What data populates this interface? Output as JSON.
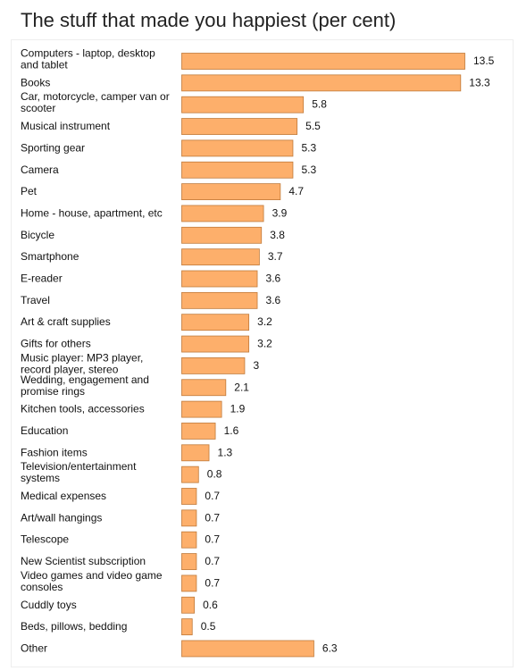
{
  "chart_data": {
    "type": "bar",
    "orientation": "horizontal",
    "title": "The stuff that made you happiest (per cent)",
    "xlabel": "",
    "ylabel": "",
    "categories": [
      "Computers - laptop, desktop and tablet",
      "Books",
      "Car, motorcycle, camper van or scooter",
      "Musical instrument",
      "Sporting gear",
      "Camera",
      "Pet",
      "Home - house, apartment, etc",
      "Bicycle",
      "Smartphone",
      "E-reader",
      "Travel",
      "Art & craft supplies",
      "Gifts for others",
      "Music player: MP3 player, record player, stereo",
      "Wedding, engagement and promise rings",
      "Kitchen tools, accessories",
      "Education",
      "Fashion items",
      "Television/entertainment systems",
      "Medical expenses",
      "Art/wall hangings",
      "Telescope",
      "New Scientist subscription",
      "Video games and video game consoles",
      "Cuddly toys",
      "Beds, pillows, bedding",
      "Other"
    ],
    "values": [
      13.5,
      13.3,
      5.8,
      5.5,
      5.3,
      5.3,
      4.7,
      3.9,
      3.8,
      3.7,
      3.6,
      3.6,
      3.2,
      3.2,
      3,
      2.1,
      1.9,
      1.6,
      1.3,
      0.8,
      0.7,
      0.7,
      0.7,
      0.7,
      0.7,
      0.6,
      0.5,
      6.3
    ],
    "value_labels": [
      "13.5",
      "13.3",
      "5.8",
      "5.5",
      "5.3",
      "5.3",
      "4.7",
      "3.9",
      "3.8",
      "3.7",
      "3.6",
      "3.6",
      "3.2",
      "3.2",
      "3",
      "2.1",
      "1.9",
      "1.6",
      "1.3",
      "0.8",
      "0.7",
      "0.7",
      "0.7",
      "0.7",
      "0.7",
      "0.6",
      "0.5",
      "6.3"
    ],
    "xlim": [
      0,
      13.5
    ],
    "grid": false,
    "legend": "none",
    "bar_color": "#fdaf6b",
    "bar_border_color": "#c07a3a"
  }
}
